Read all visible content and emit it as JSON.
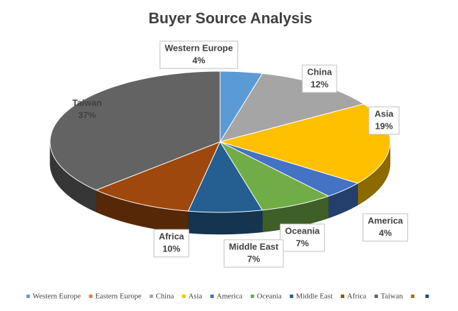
{
  "chart_data": {
    "type": "pie3d",
    "title": "Buyer Source Analysis",
    "categories": [
      "Western Europe",
      "Eastern Europe",
      "China",
      "Asia",
      "America",
      "Oceania",
      "Middle East",
      "Africa",
      "Taiwan",
      null,
      null
    ],
    "values": [
      4,
      0,
      12,
      19,
      4,
      7,
      7,
      10,
      37,
      0,
      0
    ],
    "value_labels": [
      "4%",
      null,
      "12%",
      "19%",
      "4%",
      "7%",
      "7%",
      "10%",
      "37%",
      null,
      null
    ],
    "colors": [
      "#5b9bd5",
      "#ed7d31",
      "#a5a5a5",
      "#ffc000",
      "#4472c4",
      "#70ad47",
      "#255e91",
      "#9e480e",
      "#636363",
      "#997300",
      "#264478"
    ],
    "legend": "bottom"
  }
}
